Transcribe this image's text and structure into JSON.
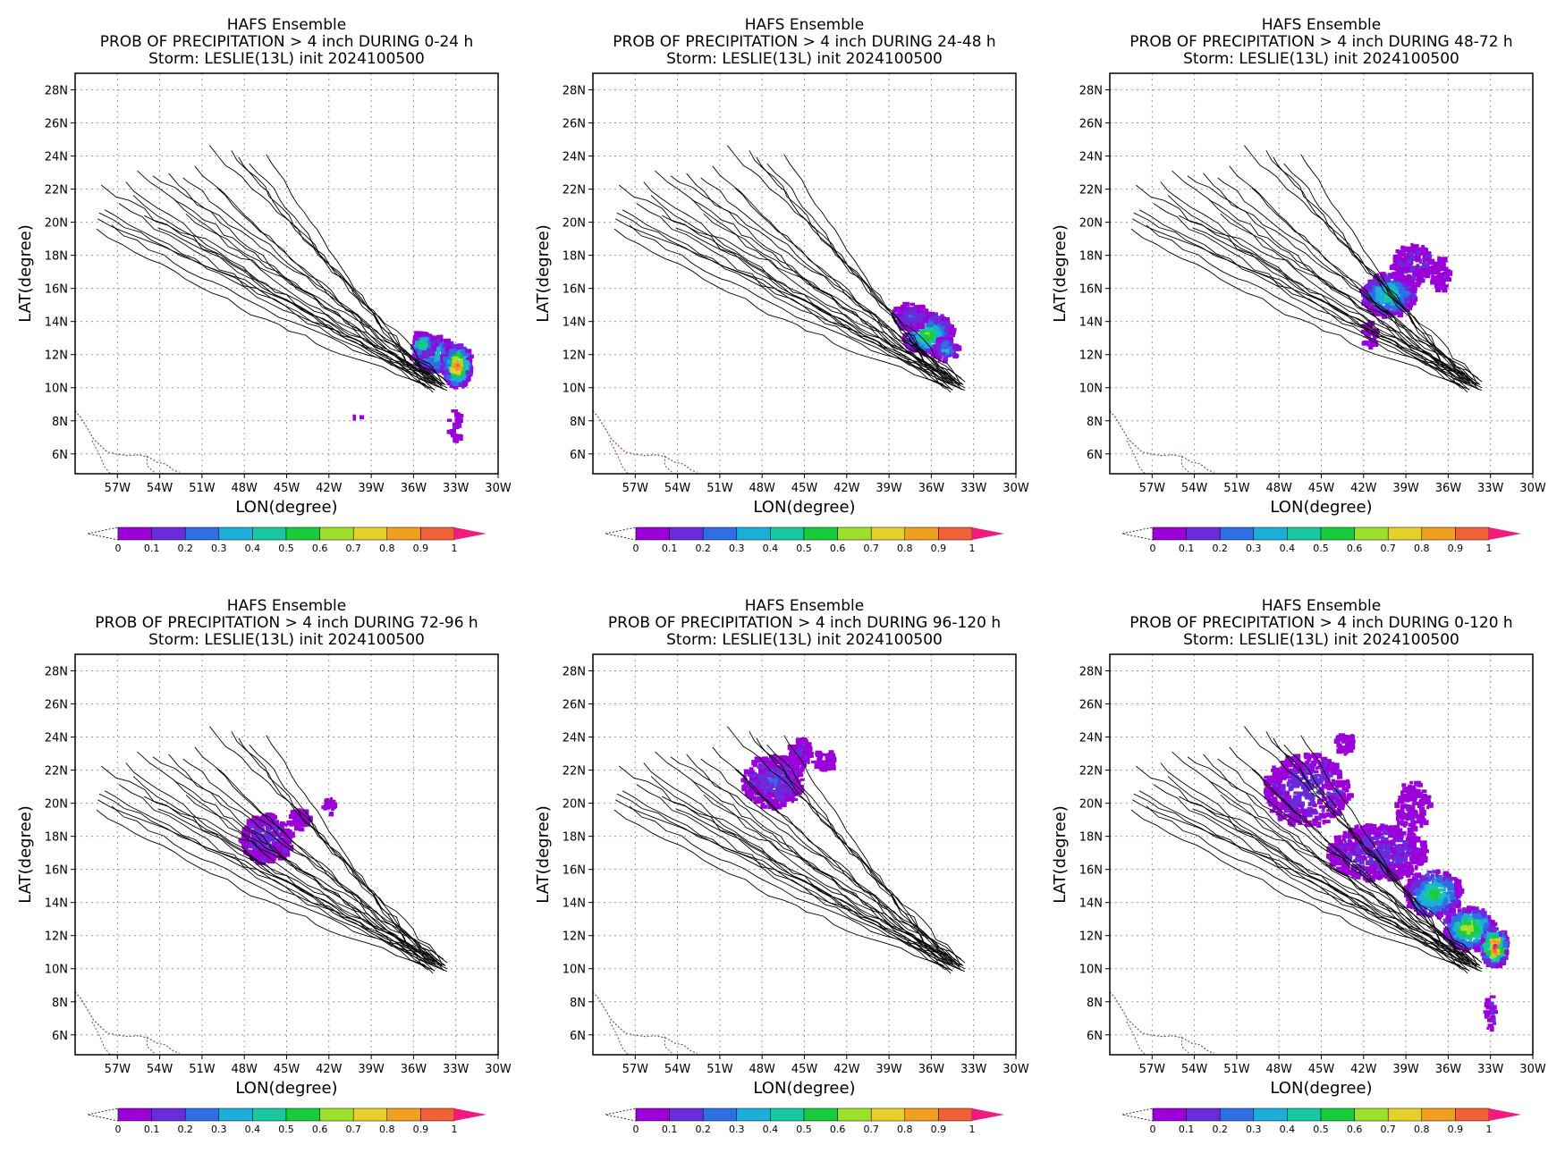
{
  "figure": {
    "colors": {
      "frame": "#000000",
      "grid": "#9a9a9a",
      "track": "#000000",
      "coast": "#8b4a3a",
      "background": "#ffffff"
    },
    "lon_ticks": [
      "57W",
      "54W",
      "51W",
      "48W",
      "45W",
      "42W",
      "39W",
      "36W",
      "33W",
      "30W"
    ],
    "lat_ticks": [
      "28N",
      "26N",
      "24N",
      "22N",
      "20N",
      "18N",
      "16N",
      "14N",
      "12N",
      "10N",
      "8N",
      "6N"
    ],
    "xlabel": "LON(degree)",
    "ylabel": "LAT(degree)",
    "colorbar": {
      "labels": [
        "0",
        "0.1",
        "0.2",
        "0.3",
        "0.4",
        "0.5",
        "0.6",
        "0.7",
        "0.8",
        "0.9",
        "1"
      ],
      "colors": [
        "#9b00d9",
        "#6a2bdc",
        "#2f6fe6",
        "#1aaed9",
        "#18c8a0",
        "#19cc3c",
        "#9ce02a",
        "#e6d12a",
        "#f0a020",
        "#f2603a",
        "#f2197f"
      ]
    },
    "panels": [
      {
        "title1": "HAFS Ensemble",
        "title2": "PROB OF PRECIPITATION > 4 inch DURING  0-24 h",
        "title3": "Storm: LESLIE(13L) init 2024100500",
        "period": "0-24"
      },
      {
        "title1": "HAFS Ensemble",
        "title2": "PROB OF PRECIPITATION > 4 inch DURING 24-48 h",
        "title3": "Storm: LESLIE(13L) init 2024100500",
        "period": "24-48"
      },
      {
        "title1": "HAFS Ensemble",
        "title2": "PROB OF PRECIPITATION > 4 inch DURING 48-72 h",
        "title3": "Storm: LESLIE(13L) init 2024100500",
        "period": "48-72"
      },
      {
        "title1": "HAFS Ensemble",
        "title2": "PROB OF PRECIPITATION > 4 inch DURING 72-96 h",
        "title3": "Storm: LESLIE(13L) init 2024100500",
        "period": "72-96"
      },
      {
        "title1": "HAFS Ensemble",
        "title2": "PROB OF PRECIPITATION > 4 inch DURING 96-120 h",
        "title3": "Storm: LESLIE(13L) init 2024100500",
        "period": "96-120"
      },
      {
        "title1": "HAFS Ensemble",
        "title2": "PROB OF PRECIPITATION > 4 inch DURING 0-120 h",
        "title3": "Storm: LESLIE(13L) init 2024100500",
        "period": "0-120"
      }
    ]
  }
}
